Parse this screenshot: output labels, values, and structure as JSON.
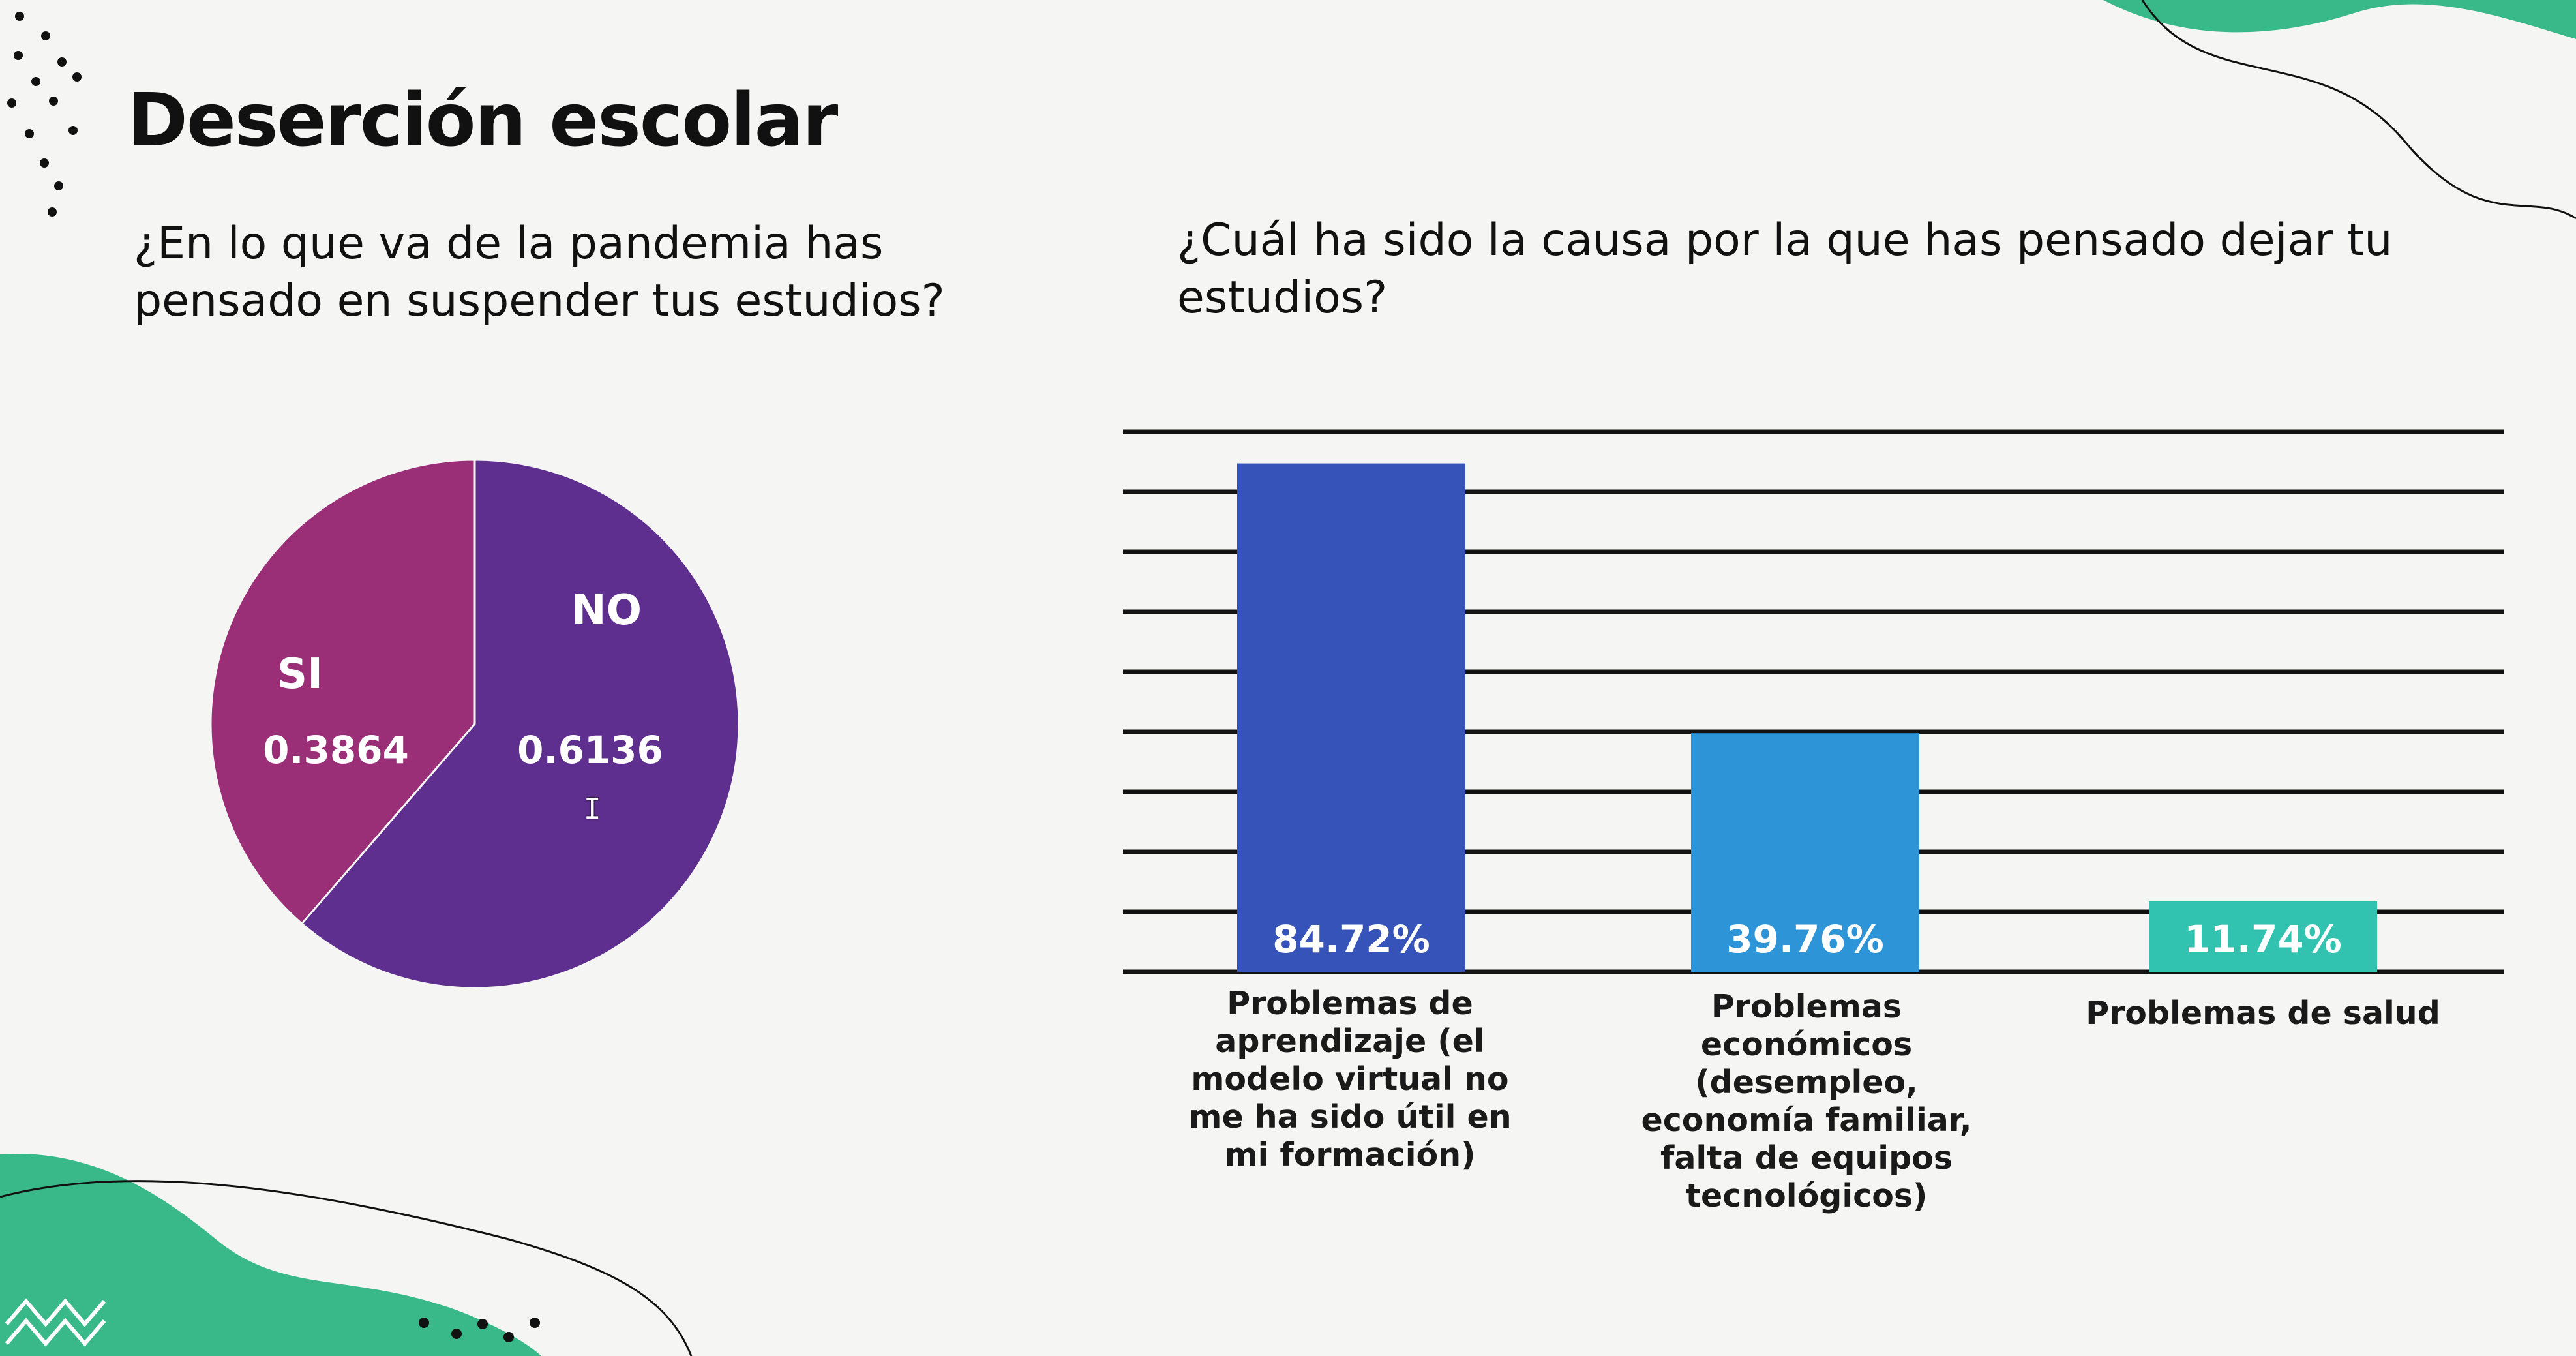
{
  "slide": {
    "title": "Deserción escolar",
    "question_left": "¿En lo que va de la pandemia has pensado en suspender tus estudios?",
    "question_right": "¿Cuál ha sido la causa por la que has pensado dejar tu estudios?"
  },
  "chart_data": [
    {
      "type": "pie",
      "categories": [
        "SI",
        "NO"
      ],
      "values": [
        0.3864,
        0.6136
      ],
      "value_labels": [
        "0.3864",
        "0.6136"
      ],
      "colors": [
        "#9a2f78",
        "#5f2f8f"
      ]
    },
    {
      "type": "bar",
      "categories": [
        "Problemas de aprendizaje (el modelo virtual no me ha sido útil en mi formación)",
        "Problemas económicos (desempleo, economía familiar, falta de equipos tecnológicos)",
        "Problemas de salud"
      ],
      "values": [
        84.72,
        39.76,
        11.74
      ],
      "value_labels": [
        "84.72%",
        "39.76%",
        "11.74%"
      ],
      "ylim": [
        0,
        90
      ],
      "grid": true,
      "colors": [
        "#3553b8",
        "#2d95d7",
        "#31c2b0"
      ]
    }
  ],
  "decor": {
    "accent_green": "#39b98a",
    "dot_color": "#111111",
    "text_color": "#111111"
  }
}
